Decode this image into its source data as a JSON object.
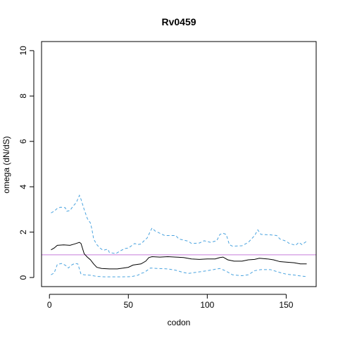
{
  "chart_data": {
    "type": "line",
    "title": "Rv0459",
    "xlabel": "codon",
    "ylabel": "omega (dN/dS)",
    "xlim": [
      -5,
      169
    ],
    "ylim": [
      -0.4,
      10.4
    ],
    "xticks": [
      0,
      50,
      100,
      150
    ],
    "yticks": [
      0,
      2,
      4,
      6,
      8,
      10
    ],
    "grid": false,
    "reference_line": {
      "y": 1,
      "color": "#c77cdb"
    },
    "series": [
      {
        "role": "estimate",
        "color": "#000000",
        "dash": "solid",
        "points": [
          [
            1,
            1.22
          ],
          [
            3,
            1.3
          ],
          [
            5,
            1.42
          ],
          [
            9,
            1.44
          ],
          [
            13,
            1.42
          ],
          [
            16,
            1.48
          ],
          [
            19,
            1.55
          ],
          [
            20,
            1.5
          ],
          [
            22,
            1.05
          ],
          [
            24,
            0.9
          ],
          [
            26,
            0.78
          ],
          [
            28,
            0.6
          ],
          [
            30,
            0.45
          ],
          [
            33,
            0.4
          ],
          [
            38,
            0.38
          ],
          [
            43,
            0.38
          ],
          [
            47,
            0.42
          ],
          [
            50,
            0.45
          ],
          [
            53,
            0.55
          ],
          [
            58,
            0.6
          ],
          [
            61,
            0.72
          ],
          [
            63,
            0.88
          ],
          [
            65,
            0.92
          ],
          [
            70,
            0.9
          ],
          [
            75,
            0.92
          ],
          [
            80,
            0.9
          ],
          [
            85,
            0.88
          ],
          [
            90,
            0.82
          ],
          [
            95,
            0.8
          ],
          [
            100,
            0.82
          ],
          [
            105,
            0.82
          ],
          [
            108,
            0.88
          ],
          [
            110,
            0.9
          ],
          [
            113,
            0.78
          ],
          [
            117,
            0.72
          ],
          [
            122,
            0.72
          ],
          [
            126,
            0.78
          ],
          [
            130,
            0.8
          ],
          [
            133,
            0.85
          ],
          [
            138,
            0.82
          ],
          [
            142,
            0.78
          ],
          [
            146,
            0.7
          ],
          [
            150,
            0.68
          ],
          [
            155,
            0.65
          ],
          [
            159,
            0.6
          ],
          [
            163,
            0.6
          ]
        ]
      },
      {
        "role": "upper",
        "color": "#4aa3df",
        "dash": "dashed",
        "points": [
          [
            1,
            2.85
          ],
          [
            3,
            2.92
          ],
          [
            5,
            3.05
          ],
          [
            7,
            3.1
          ],
          [
            10,
            3.08
          ],
          [
            11,
            2.92
          ],
          [
            13,
            2.95
          ],
          [
            15,
            3.15
          ],
          [
            17,
            3.3
          ],
          [
            19,
            3.62
          ],
          [
            20,
            3.45
          ],
          [
            22,
            3.0
          ],
          [
            24,
            2.6
          ],
          [
            26,
            2.4
          ],
          [
            27,
            2.1
          ],
          [
            28,
            1.7
          ],
          [
            30,
            1.45
          ],
          [
            32,
            1.3
          ],
          [
            34,
            1.2
          ],
          [
            37,
            1.25
          ],
          [
            38,
            1.1
          ],
          [
            40,
            1.08
          ],
          [
            42,
            1.05
          ],
          [
            45,
            1.18
          ],
          [
            48,
            1.28
          ],
          [
            50,
            1.3
          ],
          [
            52,
            1.4
          ],
          [
            54,
            1.5
          ],
          [
            56,
            1.45
          ],
          [
            58,
            1.48
          ],
          [
            60,
            1.62
          ],
          [
            62,
            1.75
          ],
          [
            64,
            2.05
          ],
          [
            65,
            2.18
          ],
          [
            67,
            2.05
          ],
          [
            70,
            1.95
          ],
          [
            73,
            1.85
          ],
          [
            80,
            1.85
          ],
          [
            82,
            1.7
          ],
          [
            88,
            1.6
          ],
          [
            90,
            1.5
          ],
          [
            95,
            1.52
          ],
          [
            98,
            1.62
          ],
          [
            102,
            1.55
          ],
          [
            106,
            1.62
          ],
          [
            108,
            1.9
          ],
          [
            110,
            1.95
          ],
          [
            112,
            1.9
          ],
          [
            114,
            1.45
          ],
          [
            116,
            1.38
          ],
          [
            122,
            1.4
          ],
          [
            126,
            1.55
          ],
          [
            130,
            1.85
          ],
          [
            132,
            2.1
          ],
          [
            134,
            1.9
          ],
          [
            140,
            1.88
          ],
          [
            144,
            1.85
          ],
          [
            146,
            1.7
          ],
          [
            150,
            1.6
          ],
          [
            152,
            1.5
          ],
          [
            156,
            1.42
          ],
          [
            158,
            1.55
          ],
          [
            160,
            1.45
          ],
          [
            163,
            1.6
          ]
        ]
      },
      {
        "role": "lower",
        "color": "#4aa3df",
        "dash": "dashed",
        "points": [
          [
            1,
            0.12
          ],
          [
            3,
            0.2
          ],
          [
            5,
            0.58
          ],
          [
            8,
            0.62
          ],
          [
            11,
            0.5
          ],
          [
            12,
            0.42
          ],
          [
            14,
            0.55
          ],
          [
            16,
            0.62
          ],
          [
            18,
            0.6
          ],
          [
            20,
            0.15
          ],
          [
            22,
            0.12
          ],
          [
            26,
            0.1
          ],
          [
            30,
            0.05
          ],
          [
            35,
            0.03
          ],
          [
            45,
            0.03
          ],
          [
            52,
            0.04
          ],
          [
            56,
            0.1
          ],
          [
            58,
            0.18
          ],
          [
            60,
            0.22
          ],
          [
            62,
            0.32
          ],
          [
            64,
            0.42
          ],
          [
            68,
            0.4
          ],
          [
            75,
            0.38
          ],
          [
            80,
            0.32
          ],
          [
            85,
            0.22
          ],
          [
            88,
            0.18
          ],
          [
            92,
            0.22
          ],
          [
            100,
            0.3
          ],
          [
            104,
            0.35
          ],
          [
            108,
            0.4
          ],
          [
            112,
            0.28
          ],
          [
            116,
            0.12
          ],
          [
            122,
            0.08
          ],
          [
            126,
            0.12
          ],
          [
            130,
            0.3
          ],
          [
            134,
            0.35
          ],
          [
            140,
            0.35
          ],
          [
            146,
            0.22
          ],
          [
            150,
            0.15
          ],
          [
            156,
            0.1
          ],
          [
            160,
            0.06
          ],
          [
            163,
            0.04
          ]
        ]
      }
    ]
  }
}
